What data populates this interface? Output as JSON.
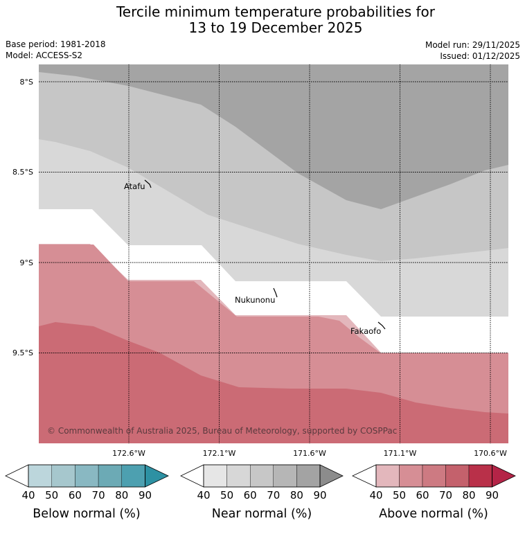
{
  "title": {
    "line1": "Tercile minimum temperature probabilities for",
    "line2": "13 to 19 December 2025"
  },
  "meta": {
    "base_period": "Base period: 1981-2018",
    "model": "Model: ACCESS-S2",
    "model_run": "Model run: 29/11/2025",
    "issued": "Issued: 01/12/2025"
  },
  "map": {
    "lat_labels": [
      "8°S",
      "8.5°S",
      "9°S",
      "9.5°S"
    ],
    "lon_labels": [
      "172.6°W",
      "172.1°W",
      "171.6°W",
      "171.1°W",
      "170.6°W"
    ],
    "places": [
      "Atafu",
      "Nukunonu",
      "Fakaofo"
    ],
    "copyright": "© Commonwealth of Australia 2025, Bureau of Meteorology, supported by COSPPac"
  },
  "legend": {
    "ticks": [
      "40",
      "50",
      "60",
      "70",
      "80",
      "90"
    ],
    "below": {
      "label": "Below normal (%)",
      "colors": [
        "#bcd6dc",
        "#a6c7cd",
        "#89b8c2",
        "#6caab5",
        "#4da0b0",
        "#2d91a3"
      ]
    },
    "near": {
      "label": "Near normal (%)",
      "colors": [
        "#e6e6e6",
        "#d7d7d7",
        "#c7c7c7",
        "#b6b6b6",
        "#a3a3a3",
        "#8c8c8c"
      ]
    },
    "above": {
      "label": "Above normal (%)",
      "colors": [
        "#e3b7bc",
        "#d68e95",
        "#cd7a82",
        "#c4616c",
        "#b93049",
        "#b42447"
      ]
    }
  },
  "colors": {
    "near_40_50": "#d8d8d8",
    "near_50_60": "#c6c6c6",
    "near_60_70": "#a4a4a4",
    "above_40_50": "#e3b7bc",
    "above_50_60": "#d68e95",
    "above_60_70": "#cb6b75"
  }
}
